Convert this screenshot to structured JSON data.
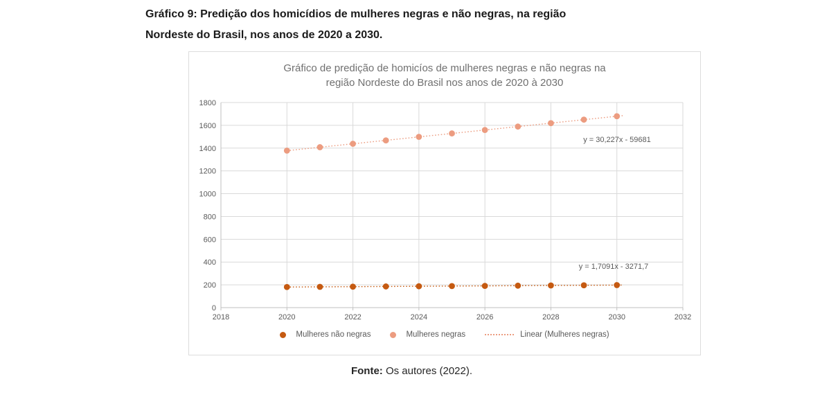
{
  "caption": {
    "line1": "Gráfico 9: Predição dos homicídios de mulheres negras e não negras, na região",
    "line2": "Nordeste do Brasil, nos anos de 2020 a 2030."
  },
  "footer": {
    "label": "Fonte:",
    "text": " Os autores (2022)."
  },
  "chart_data": {
    "type": "scatter",
    "title_line1": "Gráfico de predição de homicíos de mulheres negras e não negras na",
    "title_line2": "região Nordeste do Brasil nos anos de 2020 à 2030",
    "x": [
      2020,
      2021,
      2022,
      2023,
      2024,
      2025,
      2026,
      2027,
      2028,
      2029,
      2030
    ],
    "series": [
      {
        "name": "Mulheres não negras",
        "color": "#C55A11",
        "values": [
          180.7,
          182.4,
          184.1,
          185.8,
          187.5,
          189.3,
          191.0,
          192.7,
          194.4,
          196.1,
          197.8
        ],
        "trendline_equation": "y = 1,7091x - 3271,7",
        "trend_slope": 1.7091,
        "trend_intercept": -3271.7
      },
      {
        "name": "Mulheres negras",
        "color": "#EC9C80",
        "values": [
          1378,
          1408,
          1438,
          1468,
          1499,
          1529,
          1559,
          1589,
          1619,
          1650,
          1680
        ],
        "trendline_equation": "y = 30,227x - 59681",
        "trend_slope": 30.227,
        "trend_intercept": -59681
      }
    ],
    "legend": [
      "Mulheres não negras",
      "Mulheres negras",
      "Linear (Mulheres negras)"
    ],
    "x_ticks": [
      2018,
      2020,
      2022,
      2024,
      2026,
      2028,
      2030,
      2032
    ],
    "y_ticks": [
      0,
      200,
      400,
      600,
      800,
      1000,
      1200,
      1400,
      1600,
      1800
    ],
    "xlim": [
      2018,
      2032
    ],
    "ylim": [
      0,
      1800
    ],
    "grid": true,
    "legend_position": "bottom",
    "colors": {
      "gridline": "#D9D9D9",
      "axis": "#BFBFBF",
      "tick_text": "#595959",
      "title_text": "#707070",
      "equation_text": "#595959"
    }
  }
}
